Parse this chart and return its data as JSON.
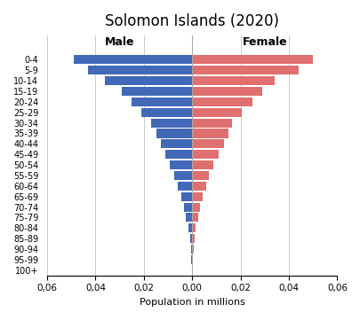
{
  "title": "Solomon Islands (2020)",
  "xlabel": "Population in millions",
  "age_groups": [
    "100+",
    "95-99",
    "90-94",
    "85-89",
    "80-84",
    "75-79",
    "70-74",
    "65-69",
    "60-64",
    "55-59",
    "50-54",
    "45-49",
    "40-44",
    "35-39",
    "30-34",
    "25-29",
    "20-24",
    "15-19",
    "10-14",
    "5-9",
    "0-4"
  ],
  "male": [
    0.0001,
    0.0003,
    0.0006,
    0.001,
    0.0017,
    0.0027,
    0.0035,
    0.0046,
    0.006,
    0.0076,
    0.0092,
    0.0112,
    0.013,
    0.0148,
    0.017,
    0.021,
    0.025,
    0.029,
    0.036,
    0.043,
    0.049
  ],
  "female": [
    0.0001,
    0.0003,
    0.0005,
    0.0009,
    0.0015,
    0.0024,
    0.0032,
    0.0042,
    0.0056,
    0.007,
    0.0088,
    0.011,
    0.013,
    0.015,
    0.0165,
    0.0205,
    0.025,
    0.029,
    0.034,
    0.044,
    0.05
  ],
  "male_color": "#4169b8",
  "female_color": "#e07070",
  "xlim": 0.06,
  "male_label": "Male",
  "female_label": "Female",
  "background_color": "#ffffff",
  "grid_color": "#cccccc"
}
